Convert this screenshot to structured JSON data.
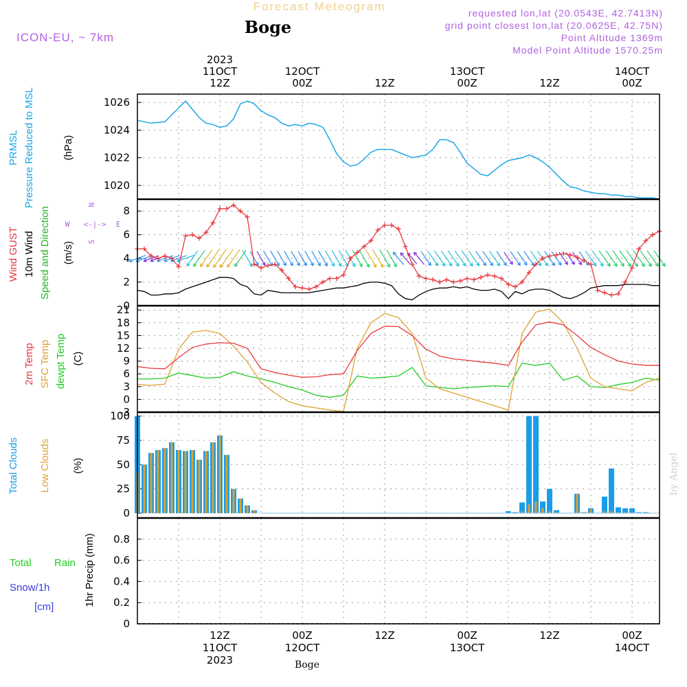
{
  "header": {
    "title": "Forecast Meteogram",
    "location": "Boge",
    "model": "ICON-EU, ~ 7km",
    "requested": "requested lon,lat (20.0543E, 42.7413N)",
    "grid_point": "grid point closest lon,lat (20.0625E, 42.75N)",
    "point_altitude": "Point Altitude 1369m",
    "model_altitude": "Model Point Altitude 1570.25m"
  },
  "footer": {
    "location": "Boge",
    "credit": "by Angel"
  },
  "colors": {
    "pressure": "#1aa7e8",
    "gust": "#e8383d",
    "wind": "#000000",
    "direction": "#2ecc40",
    "temp2m": "#e8383d",
    "sfc": "#e0a030",
    "dew": "#22cc22",
    "total_clouds": "#1a9de8",
    "low_clouds": "#e0a030",
    "rain": "#22cc22",
    "snow": "#3a3ae8",
    "header_title": "#f0d090",
    "header_meta": "#b060e0"
  },
  "time_axis": {
    "top": [
      {
        "lines": [
          "2023",
          "11OCT",
          "12Z"
        ]
      },
      {
        "lines": [
          "12OCT",
          "00Z"
        ]
      },
      {
        "lines": [
          "12Z"
        ]
      },
      {
        "lines": [
          "13OCT",
          "00Z"
        ]
      },
      {
        "lines": [
          "12Z"
        ]
      },
      {
        "lines": [
          "14OCT",
          "00Z"
        ]
      }
    ],
    "bottom": [
      {
        "lines": [
          "12Z",
          "11OCT",
          "2023"
        ]
      },
      {
        "lines": [
          "00Z",
          "12OCT"
        ]
      },
      {
        "lines": [
          "12Z"
        ]
      },
      {
        "lines": [
          "00Z",
          "13OCT"
        ]
      },
      {
        "lines": [
          "12Z"
        ]
      },
      {
        "lines": [
          "00Z",
          "14OCT"
        ]
      }
    ]
  },
  "panels": {
    "pressure": {
      "label1": "PRMSL",
      "label2": "Pressure Reduced to MSL",
      "unit": "(hPa)"
    },
    "wind": {
      "label_gust": "Wind GUST",
      "label_wind": "10m Wind",
      "label_dir": "Speed and Direction",
      "unit": "(m/s)",
      "compass_n": "N",
      "compass_w": "W",
      "compass_e": "E",
      "compass_s": "S",
      "compass_glyph": "<-|->"
    },
    "temp": {
      "label_2m": "2m Temp",
      "label_sfc": "SFC Temp",
      "label_dew": "dewpt Temp",
      "unit": "(C)"
    },
    "clouds": {
      "label_total": "Total Clouds",
      "label_low": "Low Clouds",
      "unit": "(%)"
    },
    "precip": {
      "label_rain_a": "Total",
      "label_rain_b": "Rain",
      "label_snow": "Snow/1h",
      "label_snow_unit": "[cm]",
      "label_axis": "1hr Precip (mm)"
    }
  },
  "chart_data": [
    {
      "type": "line",
      "title": "PRMSL Pressure Reduced to MSL",
      "ylabel": "hPa",
      "x_unit": "hours since 11OCT 00Z",
      "ylim": [
        1019,
        1026.6
      ],
      "yticks": [
        "1020",
        "1022",
        "1024",
        "1026"
      ],
      "series": [
        {
          "name": "PRMSL",
          "x": [
            0,
            2,
            4,
            5,
            6,
            7,
            8,
            9,
            10,
            11,
            12,
            13,
            14,
            15,
            16,
            17,
            18,
            19,
            20,
            21,
            22,
            23,
            24,
            25,
            26,
            27,
            28,
            29,
            30,
            31,
            32,
            33,
            34,
            35,
            36,
            37,
            38,
            39,
            40,
            41,
            42,
            43,
            44,
            45,
            46,
            47,
            48,
            49,
            50,
            51,
            52,
            53,
            54,
            55,
            56,
            57,
            58,
            59,
            60,
            61,
            62,
            63,
            64,
            65,
            66,
            67,
            68,
            69,
            70,
            71,
            72,
            73,
            74,
            75,
            76
          ],
          "y": [
            1024.7,
            1024.5,
            1024.6,
            1025.1,
            1025.6,
            1026.1,
            1025.5,
            1024.9,
            1024.5,
            1024.4,
            1024.2,
            1024.3,
            1024.8,
            1025.9,
            1026.1,
            1025.9,
            1025.4,
            1025.1,
            1024.9,
            1024.5,
            1024.3,
            1024.4,
            1024.3,
            1024.5,
            1024.4,
            1024.2,
            1023.3,
            1022.3,
            1021.7,
            1021.4,
            1021.5,
            1021.9,
            1022.4,
            1022.6,
            1022.6,
            1022.6,
            1022.4,
            1022.2,
            1022.0,
            1022.1,
            1022.2,
            1022.6,
            1023.3,
            1023.3,
            1023.1,
            1022.4,
            1021.6,
            1021.2,
            1020.8,
            1020.7,
            1021.1,
            1021.5,
            1021.8,
            1021.9,
            1022.0,
            1022.2,
            1022.0,
            1021.7,
            1021.3,
            1020.8,
            1020.3,
            1019.9,
            1019.8,
            1019.6,
            1019.5,
            1019.4,
            1019.4,
            1019.3,
            1019.3,
            1019.2,
            1019.2,
            1019.1,
            1019.1,
            1019.1,
            1019.0
          ]
        }
      ]
    },
    {
      "type": "line",
      "title": "Wind GUST / 10m Wind Speed and Direction",
      "ylabel": "m/s",
      "x_unit": "hours since 11OCT 00Z",
      "ylim": [
        0,
        9
      ],
      "yticks": [
        "0",
        "2",
        "4",
        "6",
        "8"
      ],
      "series": [
        {
          "name": "Wind GUST",
          "x": [
            0,
            1,
            2,
            3,
            4,
            5,
            6,
            7,
            8,
            9,
            10,
            11,
            12,
            13,
            14,
            15,
            16,
            17,
            18,
            19,
            20,
            21,
            22,
            23,
            24,
            25,
            26,
            27,
            28,
            29,
            30,
            31,
            32,
            33,
            34,
            35,
            36,
            37,
            38,
            39,
            40,
            41,
            42,
            43,
            44,
            45,
            46,
            47,
            48,
            49,
            50,
            51,
            52,
            53,
            54,
            55,
            56,
            57,
            58,
            59,
            60,
            61,
            62,
            63,
            64,
            65,
            66,
            67,
            68,
            69,
            70,
            71,
            72,
            73,
            74,
            75,
            76
          ],
          "y": [
            4.8,
            4.8,
            4.2,
            4.0,
            4.2,
            4.0,
            3.3,
            5.9,
            6.0,
            5.7,
            6.2,
            7.0,
            8.2,
            8.2,
            8.5,
            8.0,
            7.5,
            3.5,
            3.2,
            3.4,
            3.5,
            3.0,
            2.3,
            1.6,
            1.5,
            1.4,
            1.6,
            2.0,
            2.3,
            2.3,
            2.6,
            4.0,
            4.5,
            5.0,
            5.5,
            6.4,
            6.8,
            6.8,
            6.5,
            5.0,
            3.5,
            2.5,
            2.3,
            2.2,
            2.0,
            2.2,
            2.0,
            2.1,
            2.3,
            2.2,
            2.4,
            2.6,
            2.5,
            2.3,
            1.8,
            1.6,
            2.0,
            2.8,
            3.5,
            4.0,
            4.2,
            4.3,
            4.4,
            4.3,
            4.1,
            3.8,
            3.5,
            1.3,
            1.1,
            0.9,
            1.0,
            2.0,
            3.2,
            4.8,
            5.5,
            6.0,
            6.3
          ]
        },
        {
          "name": "10m Wind",
          "x": [
            0,
            1,
            2,
            3,
            4,
            5,
            6,
            7,
            8,
            9,
            10,
            11,
            12,
            13,
            14,
            15,
            16,
            17,
            18,
            19,
            20,
            21,
            22,
            23,
            24,
            25,
            26,
            27,
            28,
            29,
            30,
            31,
            32,
            33,
            34,
            35,
            36,
            37,
            38,
            39,
            40,
            41,
            42,
            43,
            44,
            45,
            46,
            47,
            48,
            49,
            50,
            51,
            52,
            53,
            54,
            55,
            56,
            57,
            58,
            59,
            60,
            61,
            62,
            63,
            64,
            65,
            66,
            67,
            68,
            69,
            70,
            71,
            72,
            73,
            74,
            75,
            76
          ],
          "y": [
            1.3,
            1.2,
            0.9,
            0.9,
            1.0,
            1.0,
            1.1,
            1.4,
            1.6,
            1.8,
            2.0,
            2.2,
            2.4,
            2.4,
            2.3,
            1.8,
            1.6,
            1.0,
            0.9,
            1.3,
            1.2,
            1.1,
            1.1,
            1.1,
            1.1,
            1.1,
            1.2,
            1.3,
            1.4,
            1.5,
            1.5,
            1.6,
            1.7,
            1.9,
            2.0,
            2.0,
            1.9,
            1.7,
            1.0,
            0.6,
            0.5,
            0.9,
            1.2,
            1.4,
            1.5,
            1.5,
            1.6,
            1.5,
            1.6,
            1.4,
            1.3,
            1.3,
            1.4,
            1.2,
            0.6,
            1.2,
            1.0,
            1.3,
            1.4,
            1.4,
            1.3,
            1.0,
            0.7,
            0.6,
            0.8,
            1.1,
            1.5,
            1.6,
            1.7,
            1.7,
            1.7,
            1.8,
            1.8,
            1.8,
            1.8,
            1.7,
            1.7
          ]
        }
      ]
    },
    {
      "type": "line",
      "title": "2m Temp / SFC Temp / dewpt Temp",
      "ylabel": "C",
      "x_unit": "hours since 11OCT 00Z",
      "ylim": [
        -3,
        22
      ],
      "yticks": [
        "-3",
        "0",
        "3",
        "6",
        "9",
        "12",
        "15",
        "18",
        "21"
      ],
      "series": [
        {
          "name": "2m Temp",
          "x": [
            0,
            2,
            4,
            6,
            8,
            10,
            12,
            14,
            16,
            18,
            20,
            22,
            24,
            26,
            28,
            30,
            32,
            34,
            36,
            38,
            40,
            42,
            44,
            46,
            48,
            50,
            52,
            54,
            56,
            58,
            60,
            62,
            64,
            66,
            68,
            70,
            72,
            74,
            76
          ],
          "y": [
            7.7,
            7.3,
            7.2,
            9.8,
            12.2,
            13.0,
            13.3,
            13.2,
            12.0,
            7.2,
            6.3,
            5.7,
            5.2,
            5.3,
            5.8,
            6.0,
            11.5,
            15.5,
            17.2,
            17.1,
            15.0,
            11.8,
            10.2,
            9.5,
            9.2,
            8.8,
            8.5,
            8.0,
            13.5,
            17.5,
            18.2,
            17.5,
            15.0,
            12.2,
            10.5,
            9.0,
            8.3,
            8.0,
            8.0
          ]
        },
        {
          "name": "SFC Temp",
          "x": [
            0,
            2,
            4,
            6,
            8,
            10,
            12,
            14,
            16,
            18,
            20,
            22,
            24,
            26,
            28,
            30,
            32,
            34,
            36,
            38,
            40,
            42,
            44,
            46,
            48,
            50,
            52,
            54,
            56,
            58,
            60,
            62,
            64,
            66,
            68,
            70,
            72,
            74,
            76
          ],
          "y": [
            3.5,
            3.3,
            3.6,
            11.8,
            15.8,
            16.2,
            15.5,
            12.5,
            8.8,
            4.0,
            1.5,
            -0.5,
            -1.5,
            -2.0,
            -2.5,
            -2.8,
            12.0,
            18.0,
            20.2,
            19.2,
            15.5,
            5.0,
            2.5,
            1.5,
            0.5,
            -0.5,
            -1.5,
            -2.5,
            15.5,
            20.5,
            21.2,
            18.0,
            12.0,
            5.0,
            3.0,
            2.5,
            2.0,
            4.0,
            5.0
          ]
        },
        {
          "name": "dewpt Temp",
          "x": [
            0,
            2,
            4,
            6,
            8,
            10,
            12,
            14,
            16,
            18,
            20,
            22,
            24,
            26,
            28,
            30,
            32,
            34,
            36,
            38,
            40,
            42,
            44,
            46,
            48,
            50,
            52,
            54,
            56,
            58,
            60,
            62,
            64,
            66,
            68,
            70,
            72,
            74,
            76
          ],
          "y": [
            4.8,
            4.8,
            5.0,
            6.2,
            5.6,
            5.0,
            5.2,
            6.5,
            5.5,
            4.8,
            4.0,
            3.0,
            2.2,
            1.0,
            0.5,
            1.0,
            5.5,
            5.0,
            5.2,
            5.5,
            7.5,
            3.2,
            2.8,
            2.5,
            2.8,
            3.0,
            3.2,
            3.0,
            8.5,
            8.0,
            8.5,
            4.5,
            5.5,
            3.0,
            2.8,
            3.5,
            4.0,
            5.0,
            4.5
          ]
        }
      ]
    },
    {
      "type": "bar",
      "title": "Total Clouds / Low Clouds",
      "ylabel": "%",
      "x_unit": "hours since 11OCT 00Z",
      "ylim": [
        -5,
        104
      ],
      "yticks": [
        "0",
        "25",
        "50",
        "75",
        "100"
      ],
      "series": [
        {
          "name": "Total Clouds",
          "x": [
            0,
            1,
            2,
            3,
            4,
            5,
            6,
            7,
            8,
            9,
            10,
            11,
            12,
            13,
            14,
            15,
            16,
            17,
            54,
            55,
            56,
            57,
            58,
            59,
            60,
            61,
            64,
            65,
            66,
            68,
            69,
            70,
            71,
            72,
            73,
            74
          ],
          "values": [
            100,
            50,
            62,
            65,
            67,
            73,
            65,
            64,
            65,
            55,
            64,
            73,
            80,
            60,
            25,
            15,
            8,
            3,
            2,
            1,
            11,
            100,
            100,
            12,
            25,
            3,
            20,
            1,
            5,
            17,
            46,
            6,
            5,
            5,
            1,
            1
          ]
        },
        {
          "name": "Low Clouds",
          "x": [
            0,
            1,
            2,
            3,
            4,
            5,
            6,
            7,
            8,
            9,
            10,
            11,
            12,
            13,
            14,
            15,
            16,
            17,
            55,
            56,
            57,
            58,
            59,
            60,
            61,
            64,
            65,
            66,
            68,
            69,
            70,
            71,
            72,
            73,
            74
          ],
          "values": [
            42,
            50,
            62,
            65,
            67,
            73,
            65,
            64,
            65,
            55,
            64,
            73,
            80,
            60,
            25,
            15,
            8,
            3,
            0,
            2,
            9,
            12,
            5,
            2,
            1,
            20,
            1,
            4,
            2,
            2,
            1,
            1,
            1,
            0,
            0
          ]
        }
      ]
    },
    {
      "type": "bar",
      "title": "Total Rain / Snow 1hr Precip",
      "ylabel": "1hr Precip (mm)",
      "x_unit": "hours since 11OCT 00Z",
      "ylim": [
        0,
        1.0
      ],
      "yticks": [
        "0",
        "0.2",
        "0.4",
        "0.6",
        "0.8"
      ],
      "series": [
        {
          "name": "Total Rain",
          "x": [],
          "values": []
        },
        {
          "name": "Snow/1h",
          "x": [],
          "values": []
        }
      ]
    }
  ]
}
